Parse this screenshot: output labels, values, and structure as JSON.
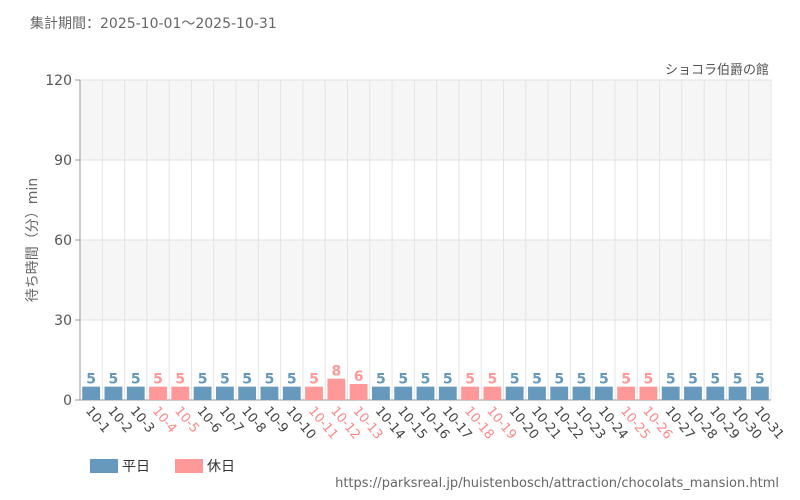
{
  "header": {
    "period_label": "集計期間：2025-10-01～2025-10-31",
    "attraction_name": "ショコラ伯爵の館"
  },
  "footer": {
    "source_url": "https://parksreal.jp/huistenbosch/attraction/chocolats_mansion.html"
  },
  "colors": {
    "weekday": "#6699bb",
    "holiday": "#ff9999",
    "weekday_text": "#6699bb",
    "holiday_text": "#ff9999",
    "weekday_tick": "#444444",
    "holiday_tick": "#ff8888"
  },
  "chart_data": {
    "type": "bar",
    "ylabel": "待ち時間（分）min",
    "ylim": [
      0,
      120
    ],
    "yticks": [
      0,
      30,
      60,
      90,
      120
    ],
    "grid": true,
    "legend_position": "bottom-left",
    "categories": [
      "10-1",
      "10-2",
      "10-3",
      "10-4",
      "10-5",
      "10-6",
      "10-7",
      "10-8",
      "10-9",
      "10-10",
      "10-11",
      "10-12",
      "10-13",
      "10-14",
      "10-15",
      "10-16",
      "10-17",
      "10-18",
      "10-19",
      "10-20",
      "10-21",
      "10-22",
      "10-23",
      "10-24",
      "10-25",
      "10-26",
      "10-27",
      "10-28",
      "10-29",
      "10-30",
      "10-31"
    ],
    "values": [
      5,
      5,
      5,
      5,
      5,
      5,
      5,
      5,
      5,
      5,
      5,
      8,
      6,
      5,
      5,
      5,
      5,
      5,
      5,
      5,
      5,
      5,
      5,
      5,
      5,
      5,
      5,
      5,
      5,
      5,
      5
    ],
    "day_type": [
      "weekday",
      "weekday",
      "weekday",
      "holiday",
      "holiday",
      "weekday",
      "weekday",
      "weekday",
      "weekday",
      "weekday",
      "holiday",
      "holiday",
      "holiday",
      "weekday",
      "weekday",
      "weekday",
      "weekday",
      "holiday",
      "holiday",
      "weekday",
      "weekday",
      "weekday",
      "weekday",
      "weekday",
      "holiday",
      "holiday",
      "weekday",
      "weekday",
      "weekday",
      "weekday",
      "weekday"
    ],
    "series": [
      {
        "name": "平日",
        "key": "weekday"
      },
      {
        "name": "休日",
        "key": "holiday"
      }
    ]
  }
}
